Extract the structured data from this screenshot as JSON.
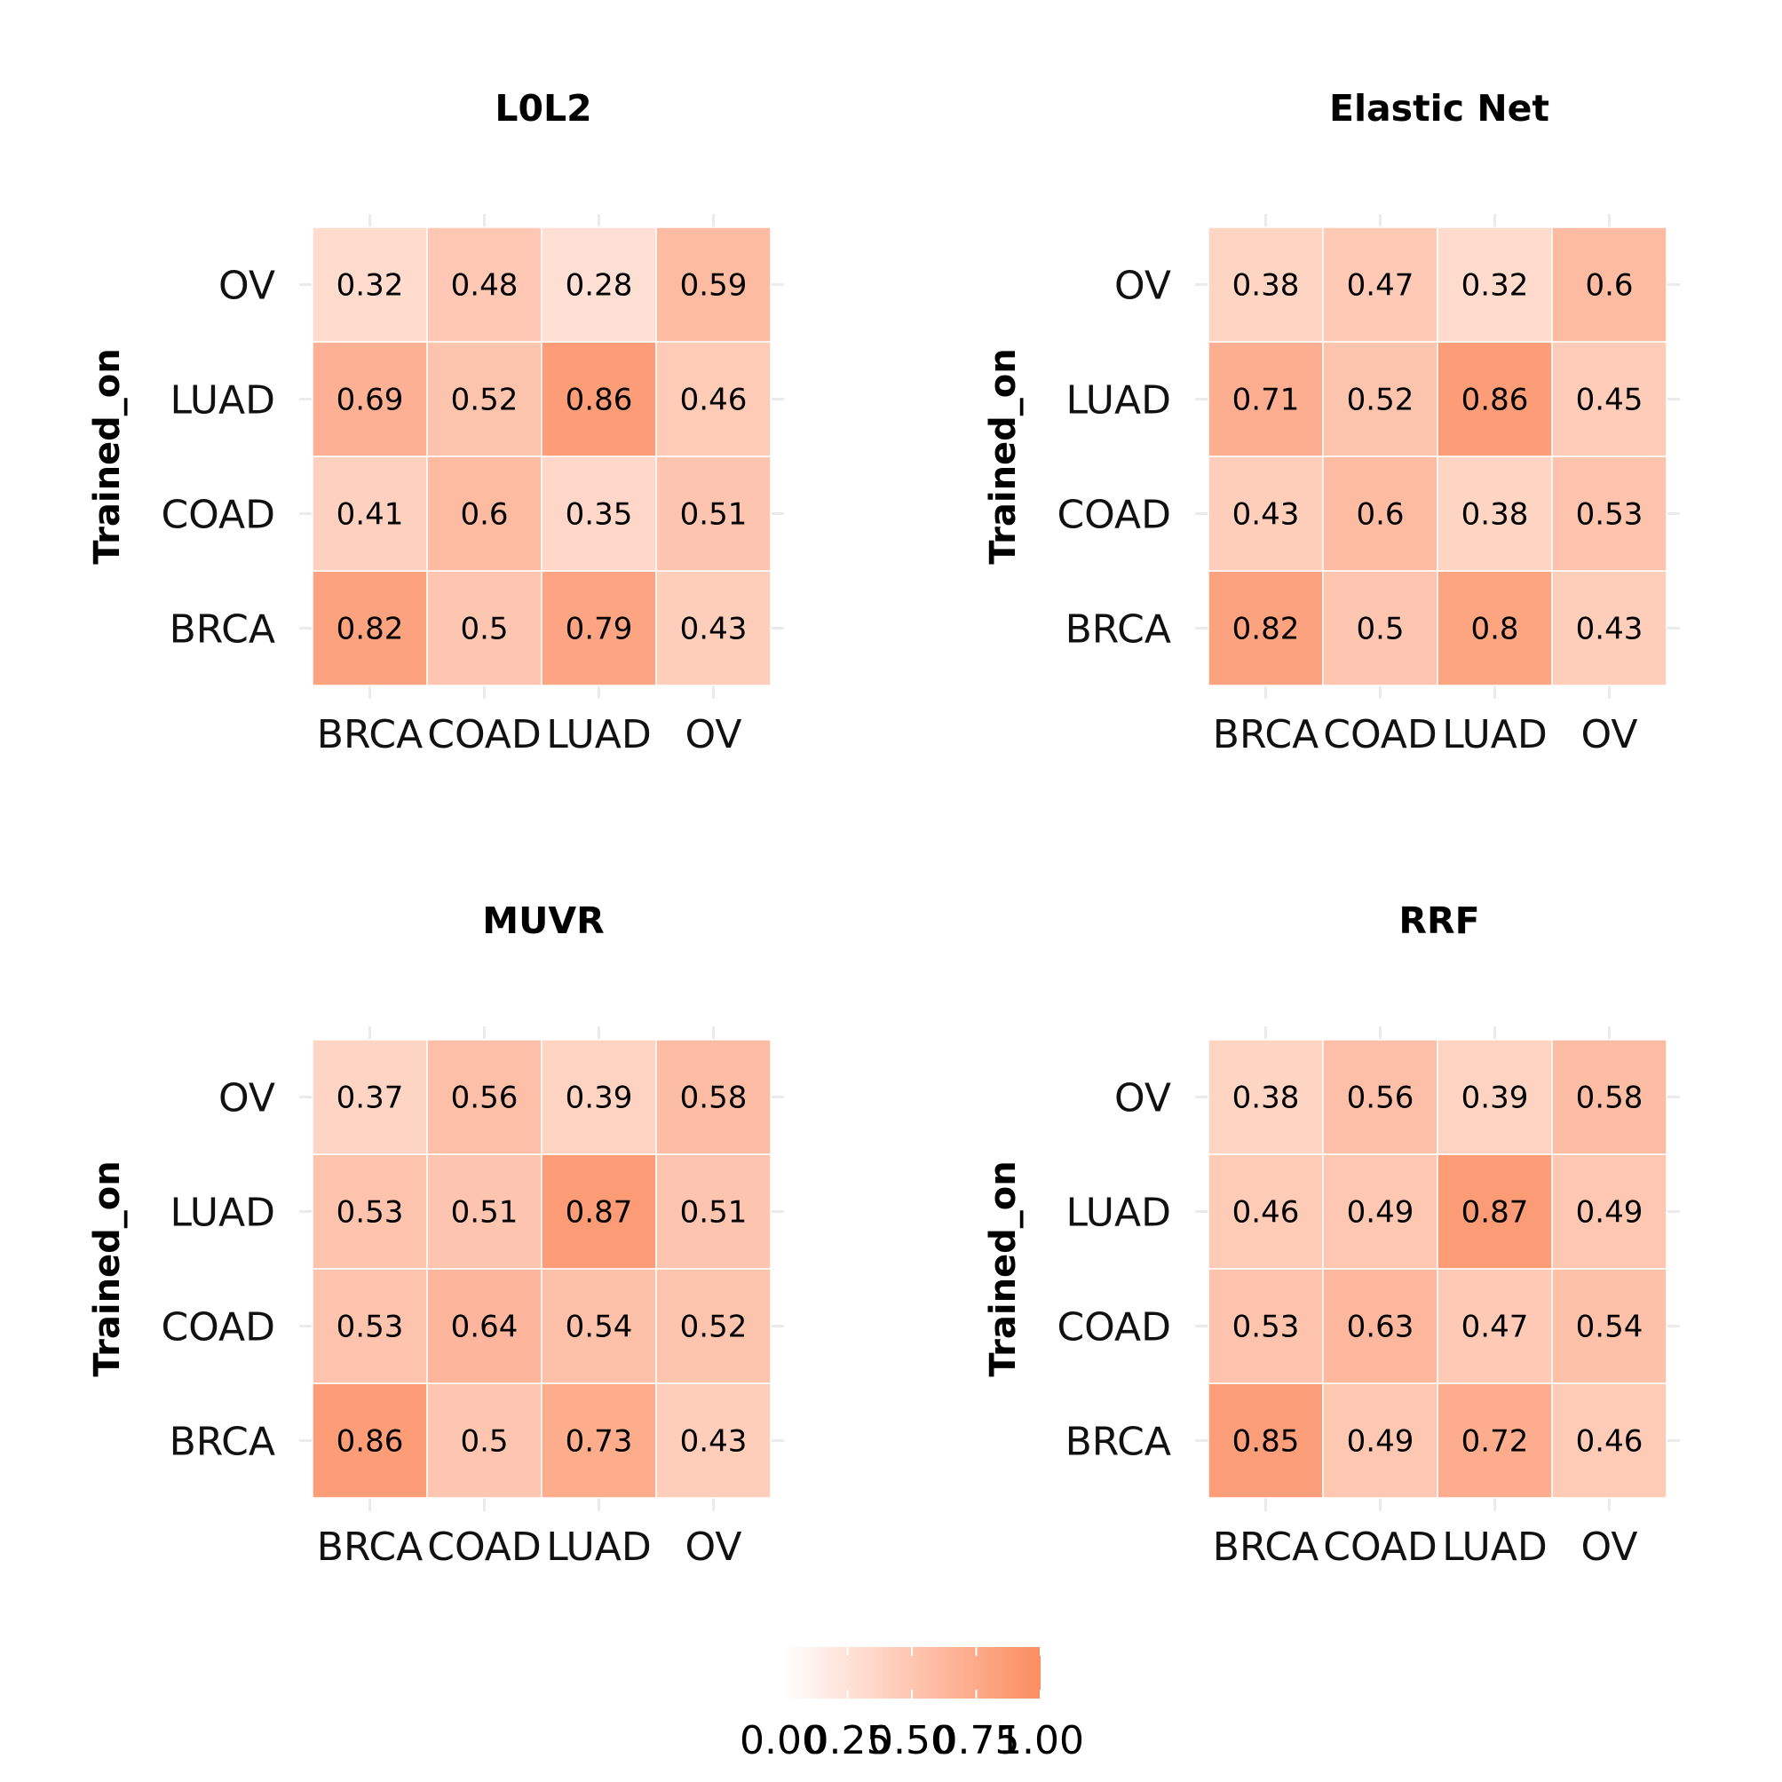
{
  "chart_data": [
    {
      "type": "heatmap",
      "title": "L0L2",
      "xlabel": "",
      "ylabel": "Trained_on",
      "x_categories": [
        "BRCA",
        "COAD",
        "LUAD",
        "OV"
      ],
      "y_categories": [
        "BRCA",
        "COAD",
        "LUAD",
        "OV"
      ],
      "values": [
        [
          0.82,
          0.5,
          0.79,
          0.43
        ],
        [
          0.41,
          0.6,
          0.35,
          0.51
        ],
        [
          0.69,
          0.52,
          0.86,
          0.46
        ],
        [
          0.32,
          0.48,
          0.28,
          0.59
        ]
      ]
    },
    {
      "type": "heatmap",
      "title": "Elastic Net",
      "xlabel": "",
      "ylabel": "Trained_on",
      "x_categories": [
        "BRCA",
        "COAD",
        "LUAD",
        "OV"
      ],
      "y_categories": [
        "BRCA",
        "COAD",
        "LUAD",
        "OV"
      ],
      "values": [
        [
          0.82,
          0.5,
          0.8,
          0.43
        ],
        [
          0.43,
          0.6,
          0.38,
          0.53
        ],
        [
          0.71,
          0.52,
          0.86,
          0.45
        ],
        [
          0.38,
          0.47,
          0.32,
          0.6
        ]
      ]
    },
    {
      "type": "heatmap",
      "title": "MUVR",
      "xlabel": "",
      "ylabel": "Trained_on",
      "x_categories": [
        "BRCA",
        "COAD",
        "LUAD",
        "OV"
      ],
      "y_categories": [
        "BRCA",
        "COAD",
        "LUAD",
        "OV"
      ],
      "values": [
        [
          0.86,
          0.5,
          0.73,
          0.43
        ],
        [
          0.53,
          0.64,
          0.54,
          0.52
        ],
        [
          0.53,
          0.51,
          0.87,
          0.51
        ],
        [
          0.37,
          0.56,
          0.39,
          0.58
        ]
      ]
    },
    {
      "type": "heatmap",
      "title": "RRF",
      "xlabel": "",
      "ylabel": "Trained_on",
      "x_categories": [
        "BRCA",
        "COAD",
        "LUAD",
        "OV"
      ],
      "y_categories": [
        "BRCA",
        "COAD",
        "LUAD",
        "OV"
      ],
      "values": [
        [
          0.85,
          0.49,
          0.72,
          0.46
        ],
        [
          0.53,
          0.63,
          0.47,
          0.54
        ],
        [
          0.46,
          0.49,
          0.87,
          0.49
        ],
        [
          0.38,
          0.56,
          0.39,
          0.58
        ]
      ]
    }
  ],
  "legend": {
    "title": "",
    "ticks": [
      "0.00",
      "0.25",
      "0.50",
      "0.75",
      "1.00"
    ],
    "range": [
      0,
      1
    ],
    "low_color": "#ffffff",
    "high_color": "#fc8d62",
    "placement": "bottom"
  },
  "colors": {
    "grid": "#ebebeb",
    "cell_border": "#ffffff",
    "background": "#ffffff"
  }
}
